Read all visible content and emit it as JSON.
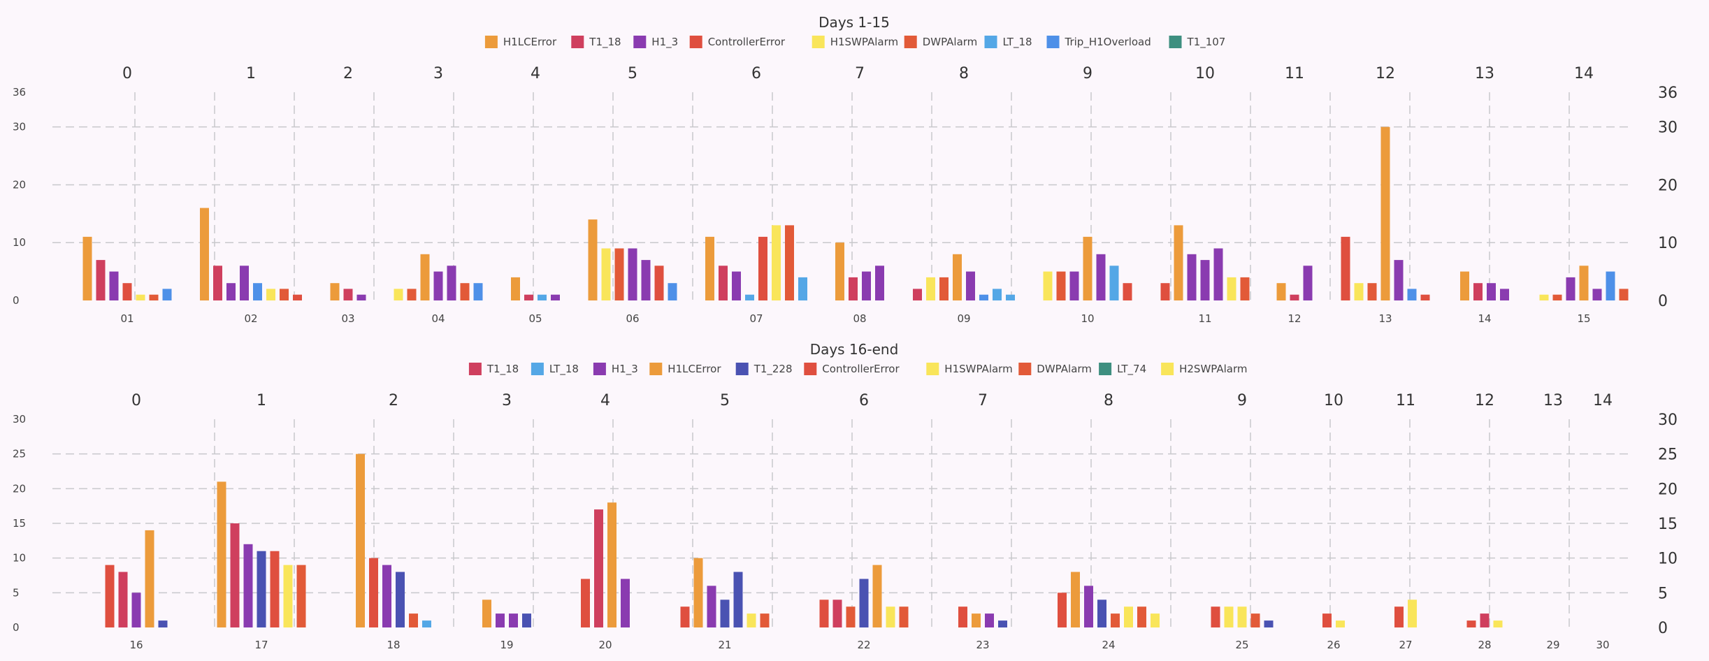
{
  "colors": {
    "H1LCError": "#ec9b3b",
    "T1_18": "#cf3f5e",
    "H1_3": "#8a3bb0",
    "ControllerError": "#df4f3f",
    "H1SWPAlarm": "#f9e55a",
    "DWPAlarm": "#e25a38",
    "LT_18": "#54a7e6",
    "Trip_H1Overload": "#4e90e8",
    "T1_107": "#3e8f80",
    "T1_228": "#4a52b2",
    "LT_74": "#3e8f80",
    "H2SWPAlarm": "#f9e55a"
  },
  "chart_data": [
    {
      "type": "bar",
      "title": "Days 1-15",
      "legend": [
        "H1LCError",
        "T1_18",
        "H1_3",
        "ControllerError",
        "H1SWPAlarm",
        "DWPAlarm",
        "LT_18",
        "Trip_H1Overload",
        "T1_107"
      ],
      "legend_position": "top",
      "ylim": [
        0,
        36
      ],
      "left_ticks": [
        0,
        10,
        20,
        30,
        36
      ],
      "right_ticks": [
        0,
        10,
        20,
        30,
        36
      ],
      "grid": true,
      "top_labels": [
        "0",
        "1",
        "2",
        "3",
        "4",
        "5",
        "6",
        "7",
        "8",
        "9",
        "10",
        "11",
        "12",
        "13",
        "14"
      ],
      "categories": [
        "01",
        "02",
        "03",
        "04",
        "05",
        "06",
        "07",
        "08",
        "09",
        "10",
        "11",
        "12",
        "13",
        "14",
        "15"
      ],
      "groups": [
        [
          {
            "s": "H1LCError",
            "v": 11
          },
          {
            "s": "T1_18",
            "v": 7
          },
          {
            "s": "H1_3",
            "v": 5
          },
          {
            "s": "ControllerError",
            "v": 3
          },
          {
            "s": "H1SWPAlarm",
            "v": 1
          },
          {
            "s": "DWPAlarm",
            "v": 1
          },
          {
            "s": "Trip_H1Overload",
            "v": 2
          }
        ],
        [
          {
            "s": "H1LCError",
            "v": 16
          },
          {
            "s": "T1_18",
            "v": 6
          },
          {
            "s": "H1_3",
            "v": 3
          },
          {
            "s": "H1_3",
            "v": 6
          },
          {
            "s": "Trip_H1Overload",
            "v": 3
          },
          {
            "s": "H1SWPAlarm",
            "v": 2
          },
          {
            "s": "DWPAlarm",
            "v": 2
          },
          {
            "s": "ControllerError",
            "v": 1
          }
        ],
        [
          {
            "s": "H1LCError",
            "v": 3
          },
          {
            "s": "T1_18",
            "v": 2
          },
          {
            "s": "H1_3",
            "v": 1
          }
        ],
        [
          {
            "s": "H1SWPAlarm",
            "v": 2
          },
          {
            "s": "DWPAlarm",
            "v": 2
          },
          {
            "s": "H1LCError",
            "v": 8
          },
          {
            "s": "H1_3",
            "v": 5
          },
          {
            "s": "H1_3",
            "v": 6
          },
          {
            "s": "DWPAlarm",
            "v": 3
          },
          {
            "s": "Trip_H1Overload",
            "v": 3
          }
        ],
        [
          {
            "s": "H1LCError",
            "v": 4
          },
          {
            "s": "T1_18",
            "v": 1
          },
          {
            "s": "LT_18",
            "v": 1
          },
          {
            "s": "H1_3",
            "v": 1
          }
        ],
        [
          {
            "s": "H1LCError",
            "v": 14
          },
          {
            "s": "H1SWPAlarm",
            "v": 9
          },
          {
            "s": "DWPAlarm",
            "v": 9
          },
          {
            "s": "H1_3",
            "v": 9
          },
          {
            "s": "H1_3",
            "v": 7
          },
          {
            "s": "ControllerError",
            "v": 6
          },
          {
            "s": "Trip_H1Overload",
            "v": 3
          }
        ],
        [
          {
            "s": "H1LCError",
            "v": 11
          },
          {
            "s": "T1_18",
            "v": 6
          },
          {
            "s": "H1_3",
            "v": 5
          },
          {
            "s": "LT_18",
            "v": 1
          },
          {
            "s": "ControllerError",
            "v": 11
          },
          {
            "s": "H1SWPAlarm",
            "v": 13
          },
          {
            "s": "DWPAlarm",
            "v": 13
          },
          {
            "s": "LT_18",
            "v": 4
          }
        ],
        [
          {
            "s": "H1LCError",
            "v": 10
          },
          {
            "s": "T1_18",
            "v": 4
          },
          {
            "s": "H1_3",
            "v": 5
          },
          {
            "s": "H1_3",
            "v": 6
          }
        ],
        [
          {
            "s": "T1_18",
            "v": 2
          },
          {
            "s": "H1SWPAlarm",
            "v": 4
          },
          {
            "s": "DWPAlarm",
            "v": 4
          },
          {
            "s": "H1LCError",
            "v": 8
          },
          {
            "s": "H1_3",
            "v": 5
          },
          {
            "s": "Trip_H1Overload",
            "v": 1
          },
          {
            "s": "LT_18",
            "v": 2
          },
          {
            "s": "LT_18",
            "v": 1
          }
        ],
        [
          {
            "s": "H1SWPAlarm",
            "v": 5
          },
          {
            "s": "DWPAlarm",
            "v": 5
          },
          {
            "s": "H1_3",
            "v": 5
          },
          {
            "s": "H1LCError",
            "v": 11
          },
          {
            "s": "H1_3",
            "v": 8
          },
          {
            "s": "LT_18",
            "v": 6
          },
          {
            "s": "ControllerError",
            "v": 3
          }
        ],
        [
          {
            "s": "ControllerError",
            "v": 3
          },
          {
            "s": "H1LCError",
            "v": 13
          },
          {
            "s": "H1_3",
            "v": 8
          },
          {
            "s": "H1_3",
            "v": 7
          },
          {
            "s": "H1_3",
            "v": 9
          },
          {
            "s": "H1SWPAlarm",
            "v": 4
          },
          {
            "s": "DWPAlarm",
            "v": 4
          }
        ],
        [
          {
            "s": "H1LCError",
            "v": 3
          },
          {
            "s": "T1_18",
            "v": 1
          },
          {
            "s": "H1_3",
            "v": 6
          }
        ],
        [
          {
            "s": "ControllerError",
            "v": 11
          },
          {
            "s": "H1SWPAlarm",
            "v": 3
          },
          {
            "s": "DWPAlarm",
            "v": 3
          },
          {
            "s": "H1LCError",
            "v": 30
          },
          {
            "s": "H1_3",
            "v": 7
          },
          {
            "s": "Trip_H1Overload",
            "v": 2
          },
          {
            "s": "ControllerError",
            "v": 1
          }
        ],
        [
          {
            "s": "H1LCError",
            "v": 5
          },
          {
            "s": "T1_18",
            "v": 3
          },
          {
            "s": "H1_3",
            "v": 3
          },
          {
            "s": "H1_3",
            "v": 2
          }
        ],
        [
          {
            "s": "H1SWPAlarm",
            "v": 1
          },
          {
            "s": "DWPAlarm",
            "v": 1
          },
          {
            "s": "H1_3",
            "v": 4
          },
          {
            "s": "H1LCError",
            "v": 6
          },
          {
            "s": "H1_3",
            "v": 2
          },
          {
            "s": "Trip_H1Overload",
            "v": 5
          },
          {
            "s": "DWPAlarm",
            "v": 2
          }
        ]
      ]
    },
    {
      "type": "bar",
      "title": "Days 16-end",
      "legend": [
        "T1_18",
        "LT_18",
        "H1_3",
        "H1LCError",
        "T1_228",
        "ControllerError",
        "H1SWPAlarm",
        "DWPAlarm",
        "LT_74",
        "H2SWPAlarm"
      ],
      "legend_position": "top",
      "ylim": [
        0,
        30
      ],
      "left_ticks": [
        0,
        5,
        10,
        15,
        20,
        25,
        30
      ],
      "right_ticks": [
        0,
        5,
        10,
        15,
        20,
        25,
        30
      ],
      "grid": true,
      "top_labels": [
        "0",
        "1",
        "2",
        "3",
        "4",
        "5",
        "6",
        "7",
        "8",
        "9",
        "10",
        "11",
        "12",
        "13",
        "14"
      ],
      "categories": [
        "16",
        "17",
        "18",
        "19",
        "20",
        "21",
        "22",
        "23",
        "24",
        "25",
        "26",
        "27",
        "28",
        "29",
        "30"
      ],
      "groups": [
        [
          {
            "s": "ControllerError",
            "v": 9
          },
          {
            "s": "T1_18",
            "v": 8
          },
          {
            "s": "H1_3",
            "v": 5
          },
          {
            "s": "H1LCError",
            "v": 14
          },
          {
            "s": "T1_228",
            "v": 1
          }
        ],
        [
          {
            "s": "H1LCError",
            "v": 21
          },
          {
            "s": "T1_18",
            "v": 15
          },
          {
            "s": "H1_3",
            "v": 12
          },
          {
            "s": "T1_228",
            "v": 11
          },
          {
            "s": "ControllerError",
            "v": 11
          },
          {
            "s": "H1SWPAlarm",
            "v": 9
          },
          {
            "s": "DWPAlarm",
            "v": 9
          }
        ],
        [
          {
            "s": "H1LCError",
            "v": 25
          },
          {
            "s": "ControllerError",
            "v": 10
          },
          {
            "s": "H1_3",
            "v": 9
          },
          {
            "s": "T1_228",
            "v": 8
          },
          {
            "s": "DWPAlarm",
            "v": 2
          },
          {
            "s": "LT_18",
            "v": 1
          }
        ],
        [
          {
            "s": "H1LCError",
            "v": 4
          },
          {
            "s": "H1_3",
            "v": 2
          },
          {
            "s": "H1_3",
            "v": 2
          },
          {
            "s": "T1_228",
            "v": 2
          }
        ],
        [
          {
            "s": "ControllerError",
            "v": 7
          },
          {
            "s": "T1_18",
            "v": 17
          },
          {
            "s": "H1LCError",
            "v": 18
          },
          {
            "s": "H1_3",
            "v": 7
          }
        ],
        [
          {
            "s": "ControllerError",
            "v": 3
          },
          {
            "s": "H1LCError",
            "v": 10
          },
          {
            "s": "H1_3",
            "v": 6
          },
          {
            "s": "T1_228",
            "v": 4
          },
          {
            "s": "T1_228",
            "v": 8
          },
          {
            "s": "H1SWPAlarm",
            "v": 2
          },
          {
            "s": "DWPAlarm",
            "v": 2
          }
        ],
        [
          {
            "s": "ControllerError",
            "v": 4
          },
          {
            "s": "T1_18",
            "v": 4
          },
          {
            "s": "DWPAlarm",
            "v": 3
          },
          {
            "s": "T1_228",
            "v": 7
          },
          {
            "s": "H1LCError",
            "v": 9
          },
          {
            "s": "H1SWPAlarm",
            "v": 3
          },
          {
            "s": "DWPAlarm",
            "v": 3
          }
        ],
        [
          {
            "s": "ControllerError",
            "v": 3
          },
          {
            "s": "H1LCError",
            "v": 2
          },
          {
            "s": "H1_3",
            "v": 2
          },
          {
            "s": "T1_228",
            "v": 1
          }
        ],
        [
          {
            "s": "ControllerError",
            "v": 5
          },
          {
            "s": "H1LCError",
            "v": 8
          },
          {
            "s": "H1_3",
            "v": 6
          },
          {
            "s": "T1_228",
            "v": 4
          },
          {
            "s": "DWPAlarm",
            "v": 2
          },
          {
            "s": "H1SWPAlarm",
            "v": 3
          },
          {
            "s": "DWPAlarm",
            "v": 3
          },
          {
            "s": "H1SWPAlarm",
            "v": 2
          }
        ],
        [
          {
            "s": "ControllerError",
            "v": 3
          },
          {
            "s": "H1SWPAlarm",
            "v": 3
          },
          {
            "s": "H1SWPAlarm",
            "v": 3
          },
          {
            "s": "DWPAlarm",
            "v": 2
          },
          {
            "s": "T1_228",
            "v": 1
          }
        ],
        [
          {
            "s": "ControllerError",
            "v": 2
          },
          {
            "s": "H1SWPAlarm",
            "v": 1
          }
        ],
        [
          {
            "s": "ControllerError",
            "v": 3
          },
          {
            "s": "H1SWPAlarm",
            "v": 4
          }
        ],
        [
          {
            "s": "ControllerError",
            "v": 1
          },
          {
            "s": "T1_18",
            "v": 2
          },
          {
            "s": "H1SWPAlarm",
            "v": 1
          }
        ],
        [],
        []
      ]
    }
  ]
}
